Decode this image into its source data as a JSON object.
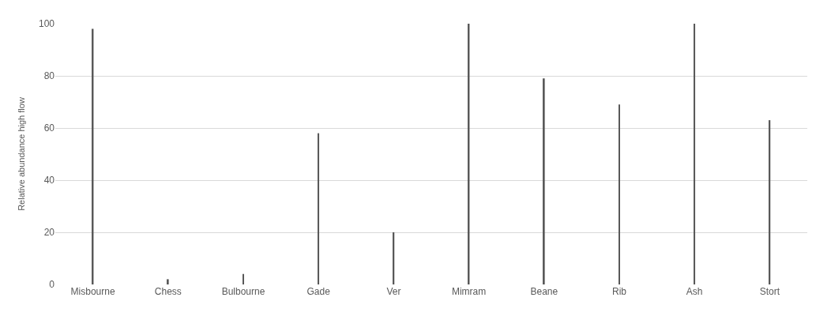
{
  "chart_data": {
    "type": "bar",
    "ylabel": "Relative abundance high flow",
    "categories": [
      "Misbourne",
      "Chess",
      "Bulbourne",
      "Gade",
      "Ver",
      "Mimram",
      "Beane",
      "Rib",
      "Ash",
      "Stort"
    ],
    "values": [
      98,
      2,
      4,
      58,
      20,
      100,
      79,
      69,
      100,
      63
    ],
    "color": "#595959",
    "ylim": [
      0,
      100
    ],
    "yticks": [
      0,
      20,
      40,
      60,
      80,
      100
    ],
    "grid": "y"
  }
}
